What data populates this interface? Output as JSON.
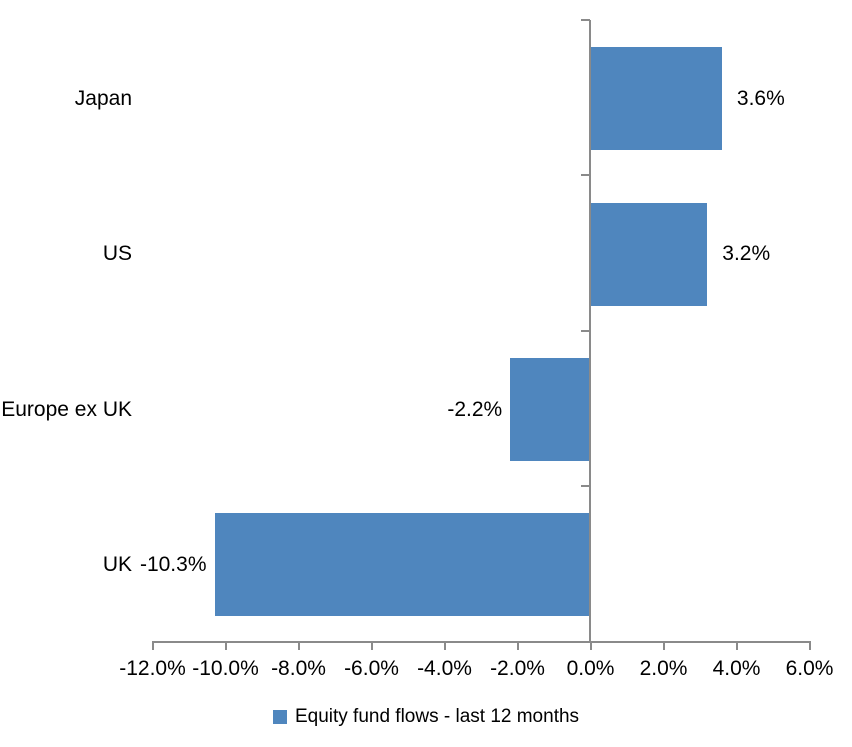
{
  "chart_data": {
    "type": "bar",
    "orientation": "horizontal",
    "categories": [
      "Japan",
      "US",
      "Europe ex UK",
      "UK"
    ],
    "values": [
      3.6,
      3.2,
      -2.2,
      -10.3
    ],
    "data_labels": [
      "3.6%",
      "3.2%",
      "-2.2%",
      "-10.3%"
    ],
    "x_ticks": [
      -12,
      -10,
      -8,
      -6,
      -4,
      -2,
      0,
      2,
      4,
      6
    ],
    "x_tick_labels": [
      "-12.0%",
      "-10.0%",
      "-8.0%",
      "-6.0%",
      "-4.0%",
      "-2.0%",
      "0.0%",
      "2.0%",
      "4.0%",
      "6.0%"
    ],
    "xlim": [
      -12,
      6
    ],
    "title": "",
    "xlabel": "",
    "ylabel": "",
    "grid": false,
    "legend": "Equity fund flows - last 12 months",
    "legend_position": "bottom",
    "bar_color": "#4F86BE",
    "axis_color": "#8A8A8A",
    "text_color": "#000000",
    "background_color": "#FFFFFF"
  }
}
